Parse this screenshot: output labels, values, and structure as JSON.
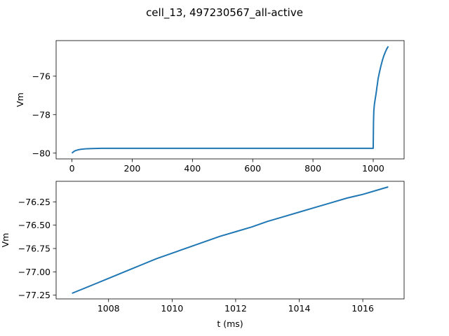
{
  "figure": {
    "title": "cell_13, 497230567_all-active"
  },
  "colors": {
    "series": "#1f77b4",
    "axes": "#000000",
    "background": "#ffffff"
  },
  "chart_data": [
    {
      "type": "line",
      "title": "",
      "xlabel": "",
      "ylabel": "Vm",
      "xlim": [
        -52.5,
        1102.5
      ],
      "ylim": [
        -80.3,
        -74.15
      ],
      "xticks": [
        0,
        200,
        400,
        600,
        800,
        1000
      ],
      "yticks": [
        -80,
        -78,
        -76
      ],
      "xtick_labels": [
        "0",
        "200",
        "400",
        "600",
        "800",
        "1000"
      ],
      "ytick_labels": [
        "−80",
        "−78",
        "−76"
      ],
      "grid": false,
      "legend": "none",
      "series": [
        {
          "x": [
            0,
            5,
            10,
            20,
            30,
            50,
            75,
            100,
            150,
            200,
            400,
            600,
            800,
            999,
            1000,
            1000.5,
            1001,
            1002,
            1004,
            1006,
            1008,
            1010,
            1012,
            1014,
            1016,
            1018,
            1020,
            1025,
            1030,
            1035,
            1040,
            1045,
            1050
          ],
          "y": [
            -80.0,
            -79.93,
            -79.88,
            -79.83,
            -79.8,
            -79.77,
            -79.76,
            -79.75,
            -79.75,
            -79.75,
            -79.75,
            -79.75,
            -79.75,
            -79.75,
            -79.75,
            -79.0,
            -78.35,
            -77.8,
            -77.45,
            -77.25,
            -77.05,
            -76.85,
            -76.6,
            -76.4,
            -76.15,
            -76.0,
            -75.85,
            -75.5,
            -75.2,
            -74.95,
            -74.75,
            -74.58,
            -74.45
          ]
        }
      ]
    },
    {
      "type": "line",
      "title": "",
      "xlabel": "t (ms)",
      "ylabel": "Vm",
      "xlim": [
        1006.35,
        1017.3
      ],
      "ylim": [
        -77.29,
        -76.03
      ],
      "xticks": [
        1008,
        1010,
        1012,
        1014,
        1016
      ],
      "yticks": [
        -77.25,
        -77.0,
        -76.75,
        -76.5,
        -76.25
      ],
      "xtick_labels": [
        "1008",
        "1010",
        "1012",
        "1014",
        "1016"
      ],
      "ytick_labels": [
        "−77.25",
        "−77.00",
        "−76.75",
        "−76.50",
        "−76.25"
      ],
      "grid": false,
      "legend": "none",
      "series": [
        {
          "x": [
            1006.85,
            1007.5,
            1008.0,
            1008.5,
            1009.0,
            1009.5,
            1010.0,
            1010.5,
            1011.0,
            1011.5,
            1012.0,
            1012.5,
            1013.0,
            1013.5,
            1014.0,
            1014.5,
            1015.0,
            1015.5,
            1016.0,
            1016.5,
            1016.8
          ],
          "y": [
            -77.23,
            -77.14,
            -77.07,
            -77.0,
            -76.93,
            -76.86,
            -76.8,
            -76.74,
            -76.68,
            -76.62,
            -76.57,
            -76.52,
            -76.46,
            -76.41,
            -76.36,
            -76.31,
            -76.26,
            -76.21,
            -76.17,
            -76.12,
            -76.09
          ]
        }
      ]
    }
  ]
}
